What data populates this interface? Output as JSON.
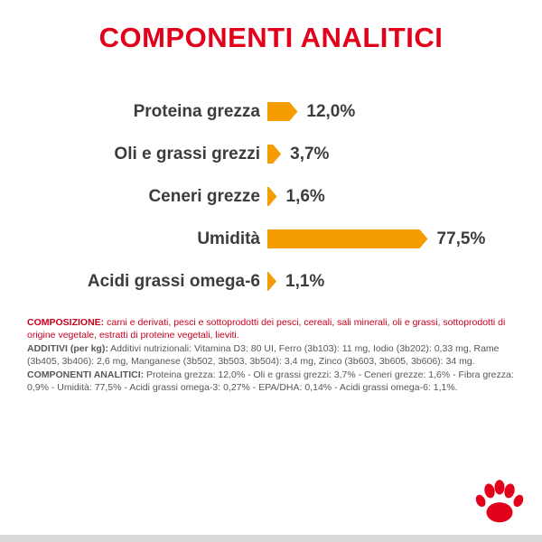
{
  "title": "COMPONENTI ANALITICI",
  "chart_data": {
    "type": "bar",
    "orientation": "horizontal",
    "title": "COMPONENTI ANALITICI",
    "categories": [
      "Proteina grezza",
      "Oli e grassi grezzi",
      "Ceneri grezze",
      "Umidità",
      "Acidi grassi omega-6"
    ],
    "values": [
      12.0,
      3.7,
      1.6,
      77.5,
      1.1
    ],
    "value_labels": [
      "12,0%",
      "3,7%",
      "1,6%",
      "77,5%",
      "1,1%"
    ],
    "xlim": [
      0,
      80
    ],
    "grid": false,
    "legend_position": "none",
    "bar_color": "#F59C00"
  },
  "paragraphs": {
    "composizione": {
      "label": "COMPOSIZIONE:",
      "text": " carni e derivati, pesci e sottoprodotti dei pesci, cereali, sali minerali, oli e grassi, sottoprodotti di origine vegetale, estratti di proteine vegetali, lieviti."
    },
    "additivi": {
      "label": "ADDITIVI (per kg):",
      "text": " Additivi nutrizionali: Vitamina D3: 80 UI, Ferro (3b103): 11 mg, Iodio (3b202): 0,33 mg, Rame (3b405, 3b406): 2,6 mg, Manganese (3b502, 3b503, 3b504): 3,4 mg, Zinco (3b603, 3b605, 3b606): 34 mg."
    },
    "componenti": {
      "label": "COMPONENTI ANALITICI:",
      "text": " Proteina grezza: 12,0% - Oli e grassi grezzi: 3,7% - Ceneri grezze: 1,6% - Fibra grezza: 0,9% - Umidità: 77,5% - Acidi grassi omega-3: 0,27% - EPA/DHA: 0,14% - Acidi grassi omega-6: 1,1%."
    }
  },
  "footer": {
    "icon": "paw-icon"
  },
  "colors": {
    "brand_red": "#E2001A",
    "bar_orange": "#F59C00",
    "text_dark": "#3C3C3B",
    "text_gray": "#575756",
    "composition_red": "#C9001E",
    "bottom_strip_gray": "#D9D9D9"
  }
}
